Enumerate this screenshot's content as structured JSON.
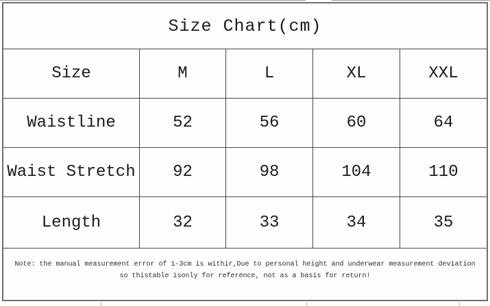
{
  "title": "Size Chart(cm)",
  "table": {
    "header": [
      "Size",
      "M",
      "L",
      "XL",
      "XXL"
    ],
    "rows": [
      {
        "label": "Waistline",
        "values": [
          "52",
          "56",
          "60",
          "64"
        ]
      },
      {
        "label": "Waist Stretch",
        "values": [
          "92",
          "98",
          "104",
          "110"
        ]
      },
      {
        "label": "Length",
        "values": [
          "32",
          "33",
          "34",
          "35"
        ]
      }
    ]
  },
  "note": {
    "line1": "Note: the manual measurement error of 1-3cm is withir,Due to personal height and underwear measurement deviation",
    "line2": "so thistable isonly for reference, not as a basis for return!"
  },
  "colors": {
    "border_inner": "#474747",
    "border_outer": "#6e6e6e",
    "text": "#1b1b1b",
    "background": "#ffffff"
  }
}
